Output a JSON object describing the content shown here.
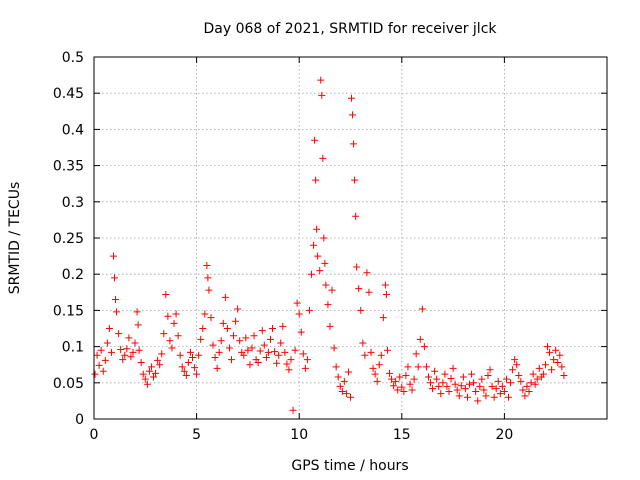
{
  "chart_data": {
    "type": "scatter",
    "title": "Day 068 of 2021, SRMTID for receiver jlck",
    "xlabel": "GPS time / hours",
    "ylabel": "SRMTID / TECUs",
    "xlim": [
      0,
      25
    ],
    "ylim": [
      0,
      0.5
    ],
    "xticks": [
      0,
      5,
      10,
      15,
      20
    ],
    "xtick_labels": [
      "0",
      "5",
      "10",
      "15",
      "20"
    ],
    "yticks": [
      0,
      0.05,
      0.1,
      0.15,
      0.2,
      0.25,
      0.3,
      0.35,
      0.4,
      0.45,
      0.5
    ],
    "ytick_labels": [
      "0",
      "0.05",
      "0.1",
      "0.15",
      "0.2",
      "0.25",
      "0.3",
      "0.35",
      "0.4",
      "0.45",
      "0.5"
    ],
    "grid": true,
    "marker": "+",
    "color": "#ff0000",
    "series": [
      {
        "name": "SRMTID",
        "points": [
          [
            0.05,
            0.062
          ],
          [
            0.15,
            0.088
          ],
          [
            0.25,
            0.074
          ],
          [
            0.35,
            0.095
          ],
          [
            0.45,
            0.066
          ],
          [
            0.55,
            0.081
          ],
          [
            0.65,
            0.105
          ],
          [
            0.75,
            0.125
          ],
          [
            0.85,
            0.092
          ],
          [
            0.95,
            0.225
          ],
          [
            1.0,
            0.195
          ],
          [
            1.05,
            0.165
          ],
          [
            1.1,
            0.148
          ],
          [
            1.2,
            0.118
          ],
          [
            1.3,
            0.096
          ],
          [
            1.4,
            0.082
          ],
          [
            1.5,
            0.088
          ],
          [
            1.6,
            0.097
          ],
          [
            1.7,
            0.112
          ],
          [
            1.8,
            0.086
          ],
          [
            1.9,
            0.092
          ],
          [
            2.0,
            0.105
          ],
          [
            2.1,
            0.148
          ],
          [
            2.15,
            0.13
          ],
          [
            2.2,
            0.095
          ],
          [
            2.3,
            0.078
          ],
          [
            2.4,
            0.062
          ],
          [
            2.5,
            0.055
          ],
          [
            2.6,
            0.048
          ],
          [
            2.7,
            0.066
          ],
          [
            2.8,
            0.072
          ],
          [
            2.9,
            0.058
          ],
          [
            3.0,
            0.063
          ],
          [
            3.1,
            0.081
          ],
          [
            3.2,
            0.075
          ],
          [
            3.3,
            0.09
          ],
          [
            3.4,
            0.118
          ],
          [
            3.5,
            0.172
          ],
          [
            3.6,
            0.142
          ],
          [
            3.7,
            0.108
          ],
          [
            3.8,
            0.098
          ],
          [
            3.9,
            0.132
          ],
          [
            4.0,
            0.145
          ],
          [
            4.1,
            0.115
          ],
          [
            4.2,
            0.088
          ],
          [
            4.3,
            0.072
          ],
          [
            4.4,
            0.066
          ],
          [
            4.5,
            0.06
          ],
          [
            4.6,
            0.078
          ],
          [
            4.7,
            0.092
          ],
          [
            4.8,
            0.085
          ],
          [
            4.9,
            0.071
          ],
          [
            5.0,
            0.062
          ],
          [
            5.1,
            0.088
          ],
          [
            5.2,
            0.11
          ],
          [
            5.3,
            0.125
          ],
          [
            5.4,
            0.145
          ],
          [
            5.5,
            0.212
          ],
          [
            5.55,
            0.195
          ],
          [
            5.6,
            0.178
          ],
          [
            5.7,
            0.14
          ],
          [
            5.8,
            0.102
          ],
          [
            5.9,
            0.085
          ],
          [
            6.0,
            0.07
          ],
          [
            6.1,
            0.092
          ],
          [
            6.2,
            0.108
          ],
          [
            6.3,
            0.132
          ],
          [
            6.4,
            0.168
          ],
          [
            6.5,
            0.125
          ],
          [
            6.6,
            0.098
          ],
          [
            6.7,
            0.082
          ],
          [
            6.8,
            0.115
          ],
          [
            6.9,
            0.135
          ],
          [
            7.0,
            0.152
          ],
          [
            7.1,
            0.108
          ],
          [
            7.2,
            0.092
          ],
          [
            7.3,
            0.088
          ],
          [
            7.4,
            0.112
          ],
          [
            7.5,
            0.095
          ],
          [
            7.6,
            0.075
          ],
          [
            7.7,
            0.098
          ],
          [
            7.8,
            0.115
          ],
          [
            7.9,
            0.082
          ],
          [
            8.0,
            0.078
          ],
          [
            8.1,
            0.094
          ],
          [
            8.2,
            0.122
          ],
          [
            8.3,
            0.102
          ],
          [
            8.4,
            0.085
          ],
          [
            8.5,
            0.092
          ],
          [
            8.6,
            0.11
          ],
          [
            8.7,
            0.125
          ],
          [
            8.8,
            0.093
          ],
          [
            8.9,
            0.077
          ],
          [
            9.0,
            0.088
          ],
          [
            9.1,
            0.105
          ],
          [
            9.2,
            0.128
          ],
          [
            9.3,
            0.092
          ],
          [
            9.4,
            0.076
          ],
          [
            9.5,
            0.068
          ],
          [
            9.6,
            0.082
          ],
          [
            9.7,
            0.012
          ],
          [
            9.8,
            0.095
          ],
          [
            9.9,
            0.16
          ],
          [
            10.0,
            0.145
          ],
          [
            10.1,
            0.12
          ],
          [
            10.2,
            0.09
          ],
          [
            10.3,
            0.07
          ],
          [
            10.4,
            0.082
          ],
          [
            10.5,
            0.15
          ],
          [
            10.6,
            0.2
          ],
          [
            10.7,
            0.24
          ],
          [
            10.75,
            0.385
          ],
          [
            10.8,
            0.33
          ],
          [
            10.85,
            0.262
          ],
          [
            10.9,
            0.225
          ],
          [
            11.0,
            0.205
          ],
          [
            11.05,
            0.468
          ],
          [
            11.1,
            0.447
          ],
          [
            11.15,
            0.36
          ],
          [
            11.2,
            0.25
          ],
          [
            11.25,
            0.215
          ],
          [
            11.3,
            0.185
          ],
          [
            11.4,
            0.158
          ],
          [
            11.5,
            0.128
          ],
          [
            11.6,
            0.178
          ],
          [
            11.7,
            0.098
          ],
          [
            11.8,
            0.072
          ],
          [
            11.9,
            0.058
          ],
          [
            12.0,
            0.045
          ],
          [
            12.1,
            0.038
          ],
          [
            12.2,
            0.052
          ],
          [
            12.3,
            0.035
          ],
          [
            12.4,
            0.065
          ],
          [
            12.5,
            0.03
          ],
          [
            12.55,
            0.443
          ],
          [
            12.6,
            0.42
          ],
          [
            12.65,
            0.38
          ],
          [
            12.7,
            0.33
          ],
          [
            12.75,
            0.28
          ],
          [
            12.8,
            0.21
          ],
          [
            12.9,
            0.18
          ],
          [
            13.0,
            0.15
          ],
          [
            13.1,
            0.105
          ],
          [
            13.2,
            0.088
          ],
          [
            13.3,
            0.202
          ],
          [
            13.4,
            0.175
          ],
          [
            13.5,
            0.092
          ],
          [
            13.6,
            0.07
          ],
          [
            13.7,
            0.062
          ],
          [
            13.8,
            0.052
          ],
          [
            13.9,
            0.075
          ],
          [
            14.0,
            0.088
          ],
          [
            14.1,
            0.14
          ],
          [
            14.2,
            0.185
          ],
          [
            14.25,
            0.172
          ],
          [
            14.3,
            0.095
          ],
          [
            14.4,
            0.063
          ],
          [
            14.5,
            0.055
          ],
          [
            14.6,
            0.046
          ],
          [
            14.7,
            0.052
          ],
          [
            14.8,
            0.04
          ],
          [
            14.9,
            0.058
          ],
          [
            15.0,
            0.044
          ],
          [
            15.1,
            0.038
          ],
          [
            15.2,
            0.06
          ],
          [
            15.3,
            0.072
          ],
          [
            15.4,
            0.048
          ],
          [
            15.5,
            0.04
          ],
          [
            15.6,
            0.055
          ],
          [
            15.7,
            0.09
          ],
          [
            15.8,
            0.072
          ],
          [
            15.9,
            0.11
          ],
          [
            16.0,
            0.152
          ],
          [
            16.1,
            0.1
          ],
          [
            16.2,
            0.072
          ],
          [
            16.3,
            0.058
          ],
          [
            16.4,
            0.05
          ],
          [
            16.5,
            0.042
          ],
          [
            16.6,
            0.066
          ],
          [
            16.7,
            0.055
          ],
          [
            16.8,
            0.045
          ],
          [
            16.9,
            0.035
          ],
          [
            17.0,
            0.05
          ],
          [
            17.1,
            0.062
          ],
          [
            17.2,
            0.045
          ],
          [
            17.3,
            0.038
          ],
          [
            17.4,
            0.056
          ],
          [
            17.5,
            0.07
          ],
          [
            17.6,
            0.048
          ],
          [
            17.7,
            0.04
          ],
          [
            17.8,
            0.032
          ],
          [
            17.9,
            0.046
          ],
          [
            18.0,
            0.058
          ],
          [
            18.1,
            0.042
          ],
          [
            18.2,
            0.03
          ],
          [
            18.3,
            0.048
          ],
          [
            18.4,
            0.062
          ],
          [
            18.5,
            0.05
          ],
          [
            18.6,
            0.038
          ],
          [
            18.7,
            0.025
          ],
          [
            18.8,
            0.045
          ],
          [
            18.9,
            0.055
          ],
          [
            19.0,
            0.04
          ],
          [
            19.1,
            0.032
          ],
          [
            19.2,
            0.06
          ],
          [
            19.3,
            0.068
          ],
          [
            19.4,
            0.045
          ],
          [
            19.5,
            0.03
          ],
          [
            19.6,
            0.042
          ],
          [
            19.7,
            0.052
          ],
          [
            19.8,
            0.035
          ],
          [
            19.9,
            0.045
          ],
          [
            20.0,
            0.038
          ],
          [
            20.1,
            0.055
          ],
          [
            20.2,
            0.03
          ],
          [
            20.3,
            0.05
          ],
          [
            20.4,
            0.068
          ],
          [
            20.5,
            0.082
          ],
          [
            20.6,
            0.075
          ],
          [
            20.7,
            0.06
          ],
          [
            20.8,
            0.052
          ],
          [
            20.9,
            0.04
          ],
          [
            21.0,
            0.032
          ],
          [
            21.1,
            0.045
          ],
          [
            21.2,
            0.038
          ],
          [
            21.3,
            0.05
          ],
          [
            21.4,
            0.062
          ],
          [
            21.5,
            0.048
          ],
          [
            21.6,
            0.055
          ],
          [
            21.7,
            0.07
          ],
          [
            21.8,
            0.058
          ],
          [
            21.9,
            0.062
          ],
          [
            22.0,
            0.075
          ],
          [
            22.1,
            0.1
          ],
          [
            22.2,
            0.092
          ],
          [
            22.3,
            0.068
          ],
          [
            22.4,
            0.082
          ],
          [
            22.5,
            0.095
          ],
          [
            22.6,
            0.078
          ],
          [
            22.7,
            0.088
          ],
          [
            22.8,
            0.072
          ],
          [
            22.9,
            0.06
          ]
        ]
      }
    ]
  }
}
